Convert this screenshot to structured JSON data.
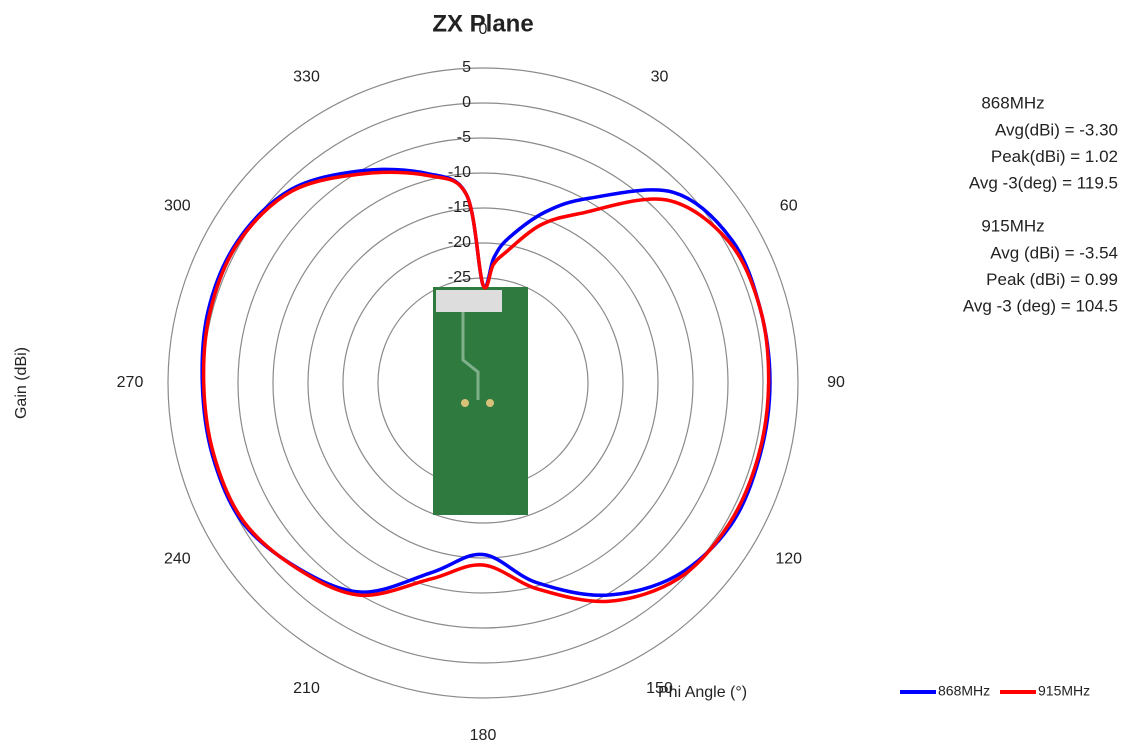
{
  "chart_data": {
    "type": "polar",
    "title": "ZX Plane",
    "radial_axis_label": "Gain (dBi)",
    "angle_axis_label": "Phi Angle (°)",
    "rlim": [
      -40,
      5
    ],
    "rticks": [
      -25,
      -20,
      -15,
      -10,
      -5,
      0,
      5
    ],
    "angle_ticks": [
      0,
      30,
      60,
      90,
      120,
      150,
      180,
      210,
      240,
      270,
      300,
      330
    ],
    "direction": "clockwise",
    "zero_location": "top",
    "theta": [
      0,
      5,
      10,
      20,
      30,
      45,
      60,
      75,
      90,
      105,
      120,
      135,
      150,
      165,
      180,
      195,
      210,
      225,
      240,
      255,
      270,
      285,
      300,
      315,
      330,
      345,
      355
    ],
    "series": [
      {
        "name": "868MHz",
        "color": "#0000ff",
        "values": [
          -26,
          -22,
          -19,
          -14,
          -9.5,
          -1.5,
          1.0,
          1.0,
          1.0,
          0.9,
          0.8,
          -1,
          -5,
          -10.5,
          -15.5,
          -12,
          -5.5,
          -2.6,
          -0.3,
          0,
          0.1,
          0.6,
          0.5,
          -1,
          -5,
          -9,
          -13
        ]
      },
      {
        "name": "915MHz",
        "color": "#ff0000",
        "values": [
          -26,
          -23,
          -21,
          -16,
          -12,
          -3,
          0.5,
          1.0,
          0.8,
          0.7,
          0.5,
          -0.5,
          -4,
          -9.5,
          -14,
          -11,
          -5,
          -2.5,
          -0.5,
          -0.2,
          -0.1,
          0.3,
          0.3,
          -1.3,
          -5.5,
          -9.3,
          -13
        ]
      }
    ],
    "legend": "bottom-right",
    "annotations": [
      {
        "heading": "868MHz",
        "lines": [
          "Avg(dBi) = -3.30",
          "Peak(dBi) = 1.02",
          "Avg -3(deg) = 119.5"
        ]
      },
      {
        "heading": "915MHz",
        "lines": [
          "Avg (dBi) =  -3.54",
          "Peak (dBi) =  0.99",
          "Avg -3 (deg) =  104.5"
        ]
      }
    ]
  }
}
